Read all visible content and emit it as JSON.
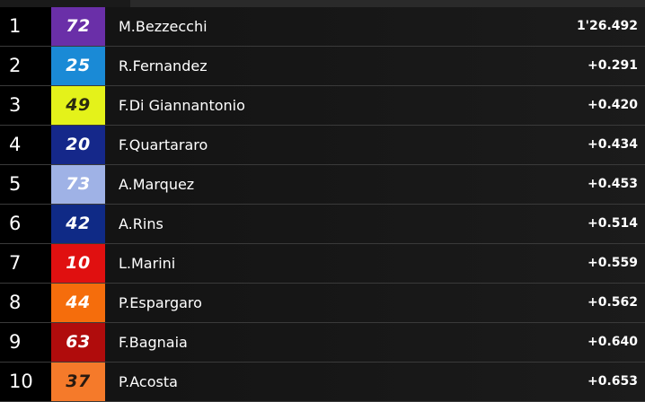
{
  "rows": [
    {
      "pos": "1",
      "number": "72",
      "color": "#6a2fa8",
      "text_color": "#ffffff",
      "name": "M.Bezzecchi",
      "time": "1'26.492"
    },
    {
      "pos": "2",
      "number": "25",
      "color": "#1a8ad6",
      "text_color": "#ffffff",
      "name": "R.Fernandez",
      "time": "+0.291"
    },
    {
      "pos": "3",
      "number": "49",
      "color": "#e4f21a",
      "text_color": "#2a2a10",
      "name": "F.Di Giannantonio",
      "time": "+0.420"
    },
    {
      "pos": "4",
      "number": "20",
      "color": "#15288a",
      "text_color": "#ffffff",
      "name": "F.Quartararo",
      "time": "+0.434"
    },
    {
      "pos": "5",
      "number": "73",
      "color": "#9fb2e6",
      "text_color": "#ffffff",
      "name": "A.Marquez",
      "time": "+0.453"
    },
    {
      "pos": "6",
      "number": "42",
      "color": "#0f2a86",
      "text_color": "#ffffff",
      "name": "A.Rins",
      "time": "+0.514"
    },
    {
      "pos": "7",
      "number": "10",
      "color": "#e01010",
      "text_color": "#ffffff",
      "name": "L.Marini",
      "time": "+0.559"
    },
    {
      "pos": "8",
      "number": "44",
      "color": "#f56d0c",
      "text_color": "#ffffff",
      "name": "P.Espargaro",
      "time": "+0.562"
    },
    {
      "pos": "9",
      "number": "63",
      "color": "#b00c0c",
      "text_color": "#ffffff",
      "name": "F.Bagnaia",
      "time": "+0.640"
    },
    {
      "pos": "10",
      "number": "37",
      "color": "#f57a2a",
      "text_color": "#2a1a10",
      "name": "P.Acosta",
      "time": "+0.653"
    }
  ]
}
